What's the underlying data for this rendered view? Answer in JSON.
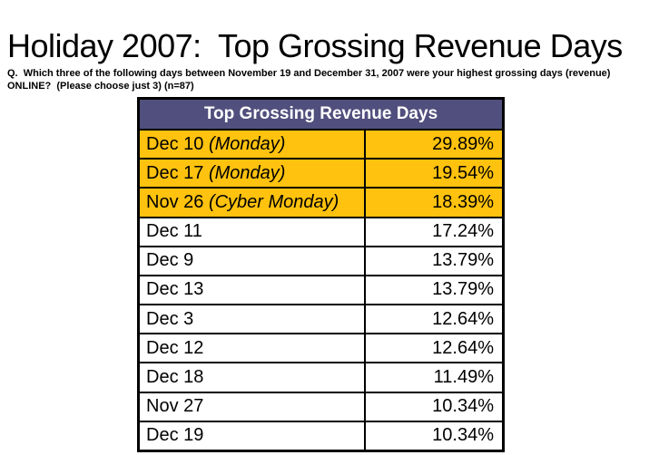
{
  "title": "Holiday 2007:  Top Grossing Revenue Days",
  "question": {
    "text": "Q.  Which three of the following days between November 19 and December 31, 2007 were your highest grossing days (revenue) ONLINE?  (Please choose just 3) (n=87)"
  },
  "table": {
    "header": "Top Grossing Revenue Days",
    "header_bg": "#514F7D",
    "header_text_color": "#FFFFFF",
    "highlight_color": "#FFC20E",
    "row_bg": "#FFFFFF",
    "border_color": "#000000",
    "rows": [
      {
        "day": "Dec 10",
        "day_note": "(Monday)",
        "value": "29.89%",
        "highlighted": true
      },
      {
        "day": "Dec 17",
        "day_note": "(Monday)",
        "value": "19.54%",
        "highlighted": true
      },
      {
        "day": "Nov 26",
        "day_note": "(Cyber Monday)",
        "value": "18.39%",
        "highlighted": true
      },
      {
        "day": "Dec 11",
        "day_note": "",
        "value": "17.24%",
        "highlighted": false
      },
      {
        "day": "Dec 9",
        "day_note": "",
        "value": "13.79%",
        "highlighted": false
      },
      {
        "day": "Dec 13",
        "day_note": "",
        "value": "13.79%",
        "highlighted": false
      },
      {
        "day": "Dec 3",
        "day_note": "",
        "value": "12.64%",
        "highlighted": false
      },
      {
        "day": "Dec 12",
        "day_note": "",
        "value": "12.64%",
        "highlighted": false
      },
      {
        "day": "Dec 18",
        "day_note": "",
        "value": "11.49%",
        "highlighted": false
      },
      {
        "day": "Nov 27",
        "day_note": "",
        "value": "10.34%",
        "highlighted": false
      },
      {
        "day": "Dec 19",
        "day_note": "",
        "value": "10.34%",
        "highlighted": false
      }
    ]
  },
  "chart_data": {
    "type": "table",
    "title": "Top Grossing Revenue Days",
    "categories": [
      "Dec 10 (Monday)",
      "Dec 17 (Monday)",
      "Nov 26 (Cyber Monday)",
      "Dec 11",
      "Dec 9",
      "Dec 13",
      "Dec 3",
      "Dec 12",
      "Dec 18",
      "Nov 27",
      "Dec 19"
    ],
    "values": [
      29.89,
      19.54,
      18.39,
      17.24,
      13.79,
      13.79,
      12.64,
      12.64,
      11.49,
      10.34,
      10.34
    ],
    "value_unit": "%",
    "highlighted_rows": [
      0,
      1,
      2
    ],
    "note": "n=87; survey of highest grossing online revenue days, Nov 19 - Dec 31, 2007"
  }
}
